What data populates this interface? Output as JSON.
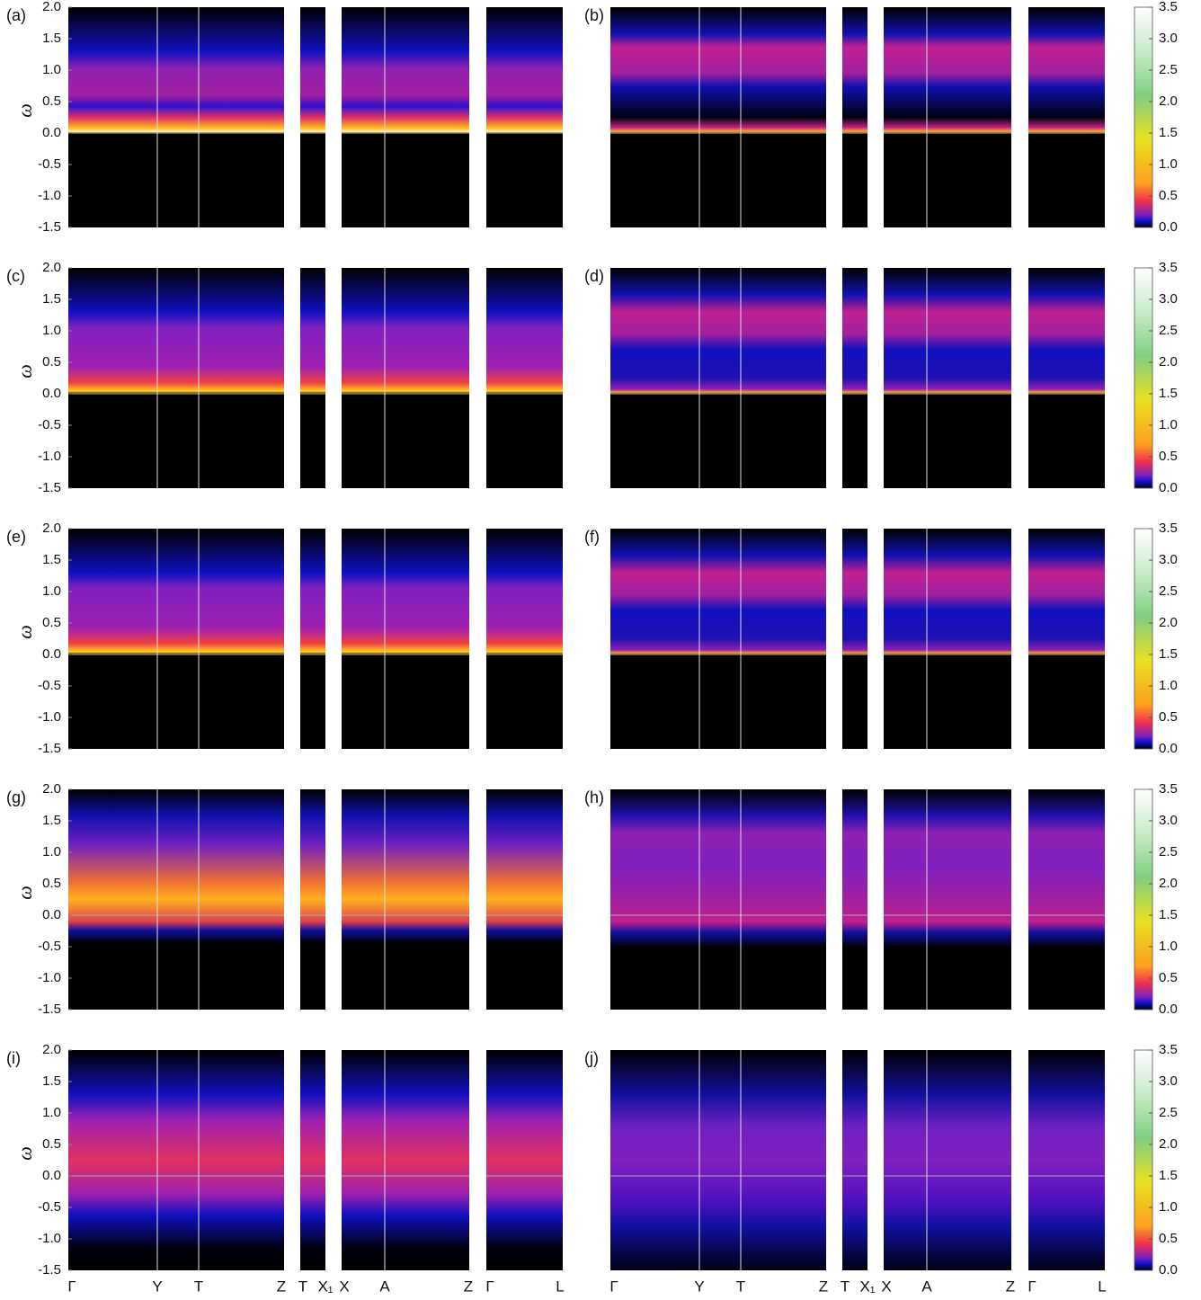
{
  "chart_data": [
    {
      "type": "heatmap",
      "label": "(a)",
      "ylabel": "ω",
      "ylim": [
        -1.5,
        2
      ],
      "yticks": [
        {
          "value": 2,
          "label": "2.0"
        },
        {
          "value": 1.5,
          "label": "1.5"
        },
        {
          "value": 1,
          "label": "1.0"
        },
        {
          "value": 0.5,
          "label": "0.5"
        },
        {
          "value": 0,
          "label": "0.0"
        },
        {
          "value": -0.5,
          "label": "-0.5"
        },
        {
          "value": -1,
          "label": "-1.0"
        },
        {
          "value": -1.5,
          "label": "-1.5"
        }
      ]
    },
    {
      "type": "heatmap",
      "label": "(b)",
      "ylim": [
        -1.5,
        2
      ],
      "colorbar": {
        "lim": [
          0,
          3.5
        ],
        "ticks": [
          {
            "value": 0,
            "label": "0.0"
          },
          {
            "value": 0.5,
            "label": "0.5"
          },
          {
            "value": 1,
            "label": "1.0"
          },
          {
            "value": 1.5,
            "label": "1.5"
          },
          {
            "value": 2,
            "label": "2.0"
          },
          {
            "value": 2.5,
            "label": "2.5"
          },
          {
            "value": 3,
            "label": "3.0"
          },
          {
            "value": 3.5,
            "label": "3.5"
          }
        ]
      }
    },
    {
      "type": "heatmap",
      "label": "(c)",
      "ylabel": "ω",
      "ylim": [
        -1.5,
        2
      ],
      "yticks": [
        {
          "value": 2,
          "label": "2.0"
        },
        {
          "value": 1.5,
          "label": "1.5"
        },
        {
          "value": 1,
          "label": "1.0"
        },
        {
          "value": 0.5,
          "label": "0.5"
        },
        {
          "value": 0,
          "label": "0.0"
        },
        {
          "value": -0.5,
          "label": "-0.5"
        },
        {
          "value": -1,
          "label": "-1.0"
        },
        {
          "value": -1.5,
          "label": "-1.5"
        }
      ]
    },
    {
      "type": "heatmap",
      "label": "(d)",
      "ylim": [
        -1.5,
        2
      ],
      "colorbar": {
        "lim": [
          0,
          3.5
        ],
        "ticks": [
          {
            "value": 0,
            "label": "0.0"
          },
          {
            "value": 0.5,
            "label": "0.5"
          },
          {
            "value": 1,
            "label": "1.0"
          },
          {
            "value": 1.5,
            "label": "1.5"
          },
          {
            "value": 2,
            "label": "2.0"
          },
          {
            "value": 2.5,
            "label": "2.5"
          },
          {
            "value": 3,
            "label": "3.0"
          },
          {
            "value": 3.5,
            "label": "3.5"
          }
        ]
      }
    },
    {
      "type": "heatmap",
      "label": "(e)",
      "ylabel": "ω",
      "ylim": [
        -1.5,
        2
      ],
      "yticks": [
        {
          "value": 2,
          "label": "2.0"
        },
        {
          "value": 1.5,
          "label": "1.5"
        },
        {
          "value": 1,
          "label": "1.0"
        },
        {
          "value": 0.5,
          "label": "0.5"
        },
        {
          "value": 0,
          "label": "0.0"
        },
        {
          "value": -0.5,
          "label": "-0.5"
        },
        {
          "value": -1,
          "label": "-1.0"
        },
        {
          "value": -1.5,
          "label": "-1.5"
        }
      ]
    },
    {
      "type": "heatmap",
      "label": "(f)",
      "ylim": [
        -1.5,
        2
      ],
      "colorbar": {
        "lim": [
          0,
          3.5
        ],
        "ticks": [
          {
            "value": 0,
            "label": "0.0"
          },
          {
            "value": 0.5,
            "label": "0.5"
          },
          {
            "value": 1,
            "label": "1.0"
          },
          {
            "value": 1.5,
            "label": "1.5"
          },
          {
            "value": 2,
            "label": "2.0"
          },
          {
            "value": 2.5,
            "label": "2.5"
          },
          {
            "value": 3,
            "label": "3.0"
          },
          {
            "value": 3.5,
            "label": "3.5"
          }
        ]
      }
    },
    {
      "type": "heatmap",
      "label": "(g)",
      "ylabel": "ω",
      "ylim": [
        -1.5,
        2
      ],
      "yticks": [
        {
          "value": 2,
          "label": "2.0"
        },
        {
          "value": 1.5,
          "label": "1.5"
        },
        {
          "value": 1,
          "label": "1.0"
        },
        {
          "value": 0.5,
          "label": "0.5"
        },
        {
          "value": 0,
          "label": "0.0"
        },
        {
          "value": -0.5,
          "label": "-0.5"
        },
        {
          "value": -1,
          "label": "-1.0"
        },
        {
          "value": -1.5,
          "label": "-1.5"
        }
      ]
    },
    {
      "type": "heatmap",
      "label": "(h)",
      "ylim": [
        -1.5,
        2
      ],
      "colorbar": {
        "lim": [
          0,
          3.5
        ],
        "ticks": [
          {
            "value": 0,
            "label": "0.0"
          },
          {
            "value": 0.5,
            "label": "0.5"
          },
          {
            "value": 1,
            "label": "1.0"
          },
          {
            "value": 1.5,
            "label": "1.5"
          },
          {
            "value": 2,
            "label": "2.0"
          },
          {
            "value": 2.5,
            "label": "2.5"
          },
          {
            "value": 3,
            "label": "3.0"
          },
          {
            "value": 3.5,
            "label": "3.5"
          }
        ]
      }
    },
    {
      "type": "heatmap",
      "label": "(i)",
      "ylabel": "ω",
      "ylim": [
        -1.5,
        2
      ],
      "yticks": [
        {
          "value": 2,
          "label": "2.0"
        },
        {
          "value": 1.5,
          "label": "1.5"
        },
        {
          "value": 1,
          "label": "1.0"
        },
        {
          "value": 0.5,
          "label": "0.5"
        },
        {
          "value": 0,
          "label": "0.0"
        },
        {
          "value": -0.5,
          "label": "-0.5"
        },
        {
          "value": -1,
          "label": "-1.0"
        },
        {
          "value": -1.5,
          "label": "-1.5"
        }
      ],
      "xticks": [
        "Γ",
        "Y",
        "T",
        "Z",
        "T",
        "X₁",
        "X",
        "A",
        "Z",
        "Γ",
        "L"
      ]
    },
    {
      "type": "heatmap",
      "label": "(j)",
      "ylim": [
        -1.5,
        2
      ],
      "colorbar": {
        "lim": [
          0,
          3.5
        ],
        "ticks": [
          {
            "value": 0,
            "label": "0.0"
          },
          {
            "value": 0.5,
            "label": "0.5"
          },
          {
            "value": 1,
            "label": "1.0"
          },
          {
            "value": 1.5,
            "label": "1.5"
          },
          {
            "value": 2,
            "label": "2.0"
          },
          {
            "value": 2.5,
            "label": "2.5"
          },
          {
            "value": 3,
            "label": "3.0"
          },
          {
            "value": 3.5,
            "label": "3.5"
          }
        ]
      },
      "xticks": [
        "Γ",
        "Y",
        "T",
        "Z",
        "T",
        "X₁",
        "X",
        "A",
        "Z",
        "Γ",
        "L"
      ]
    }
  ]
}
